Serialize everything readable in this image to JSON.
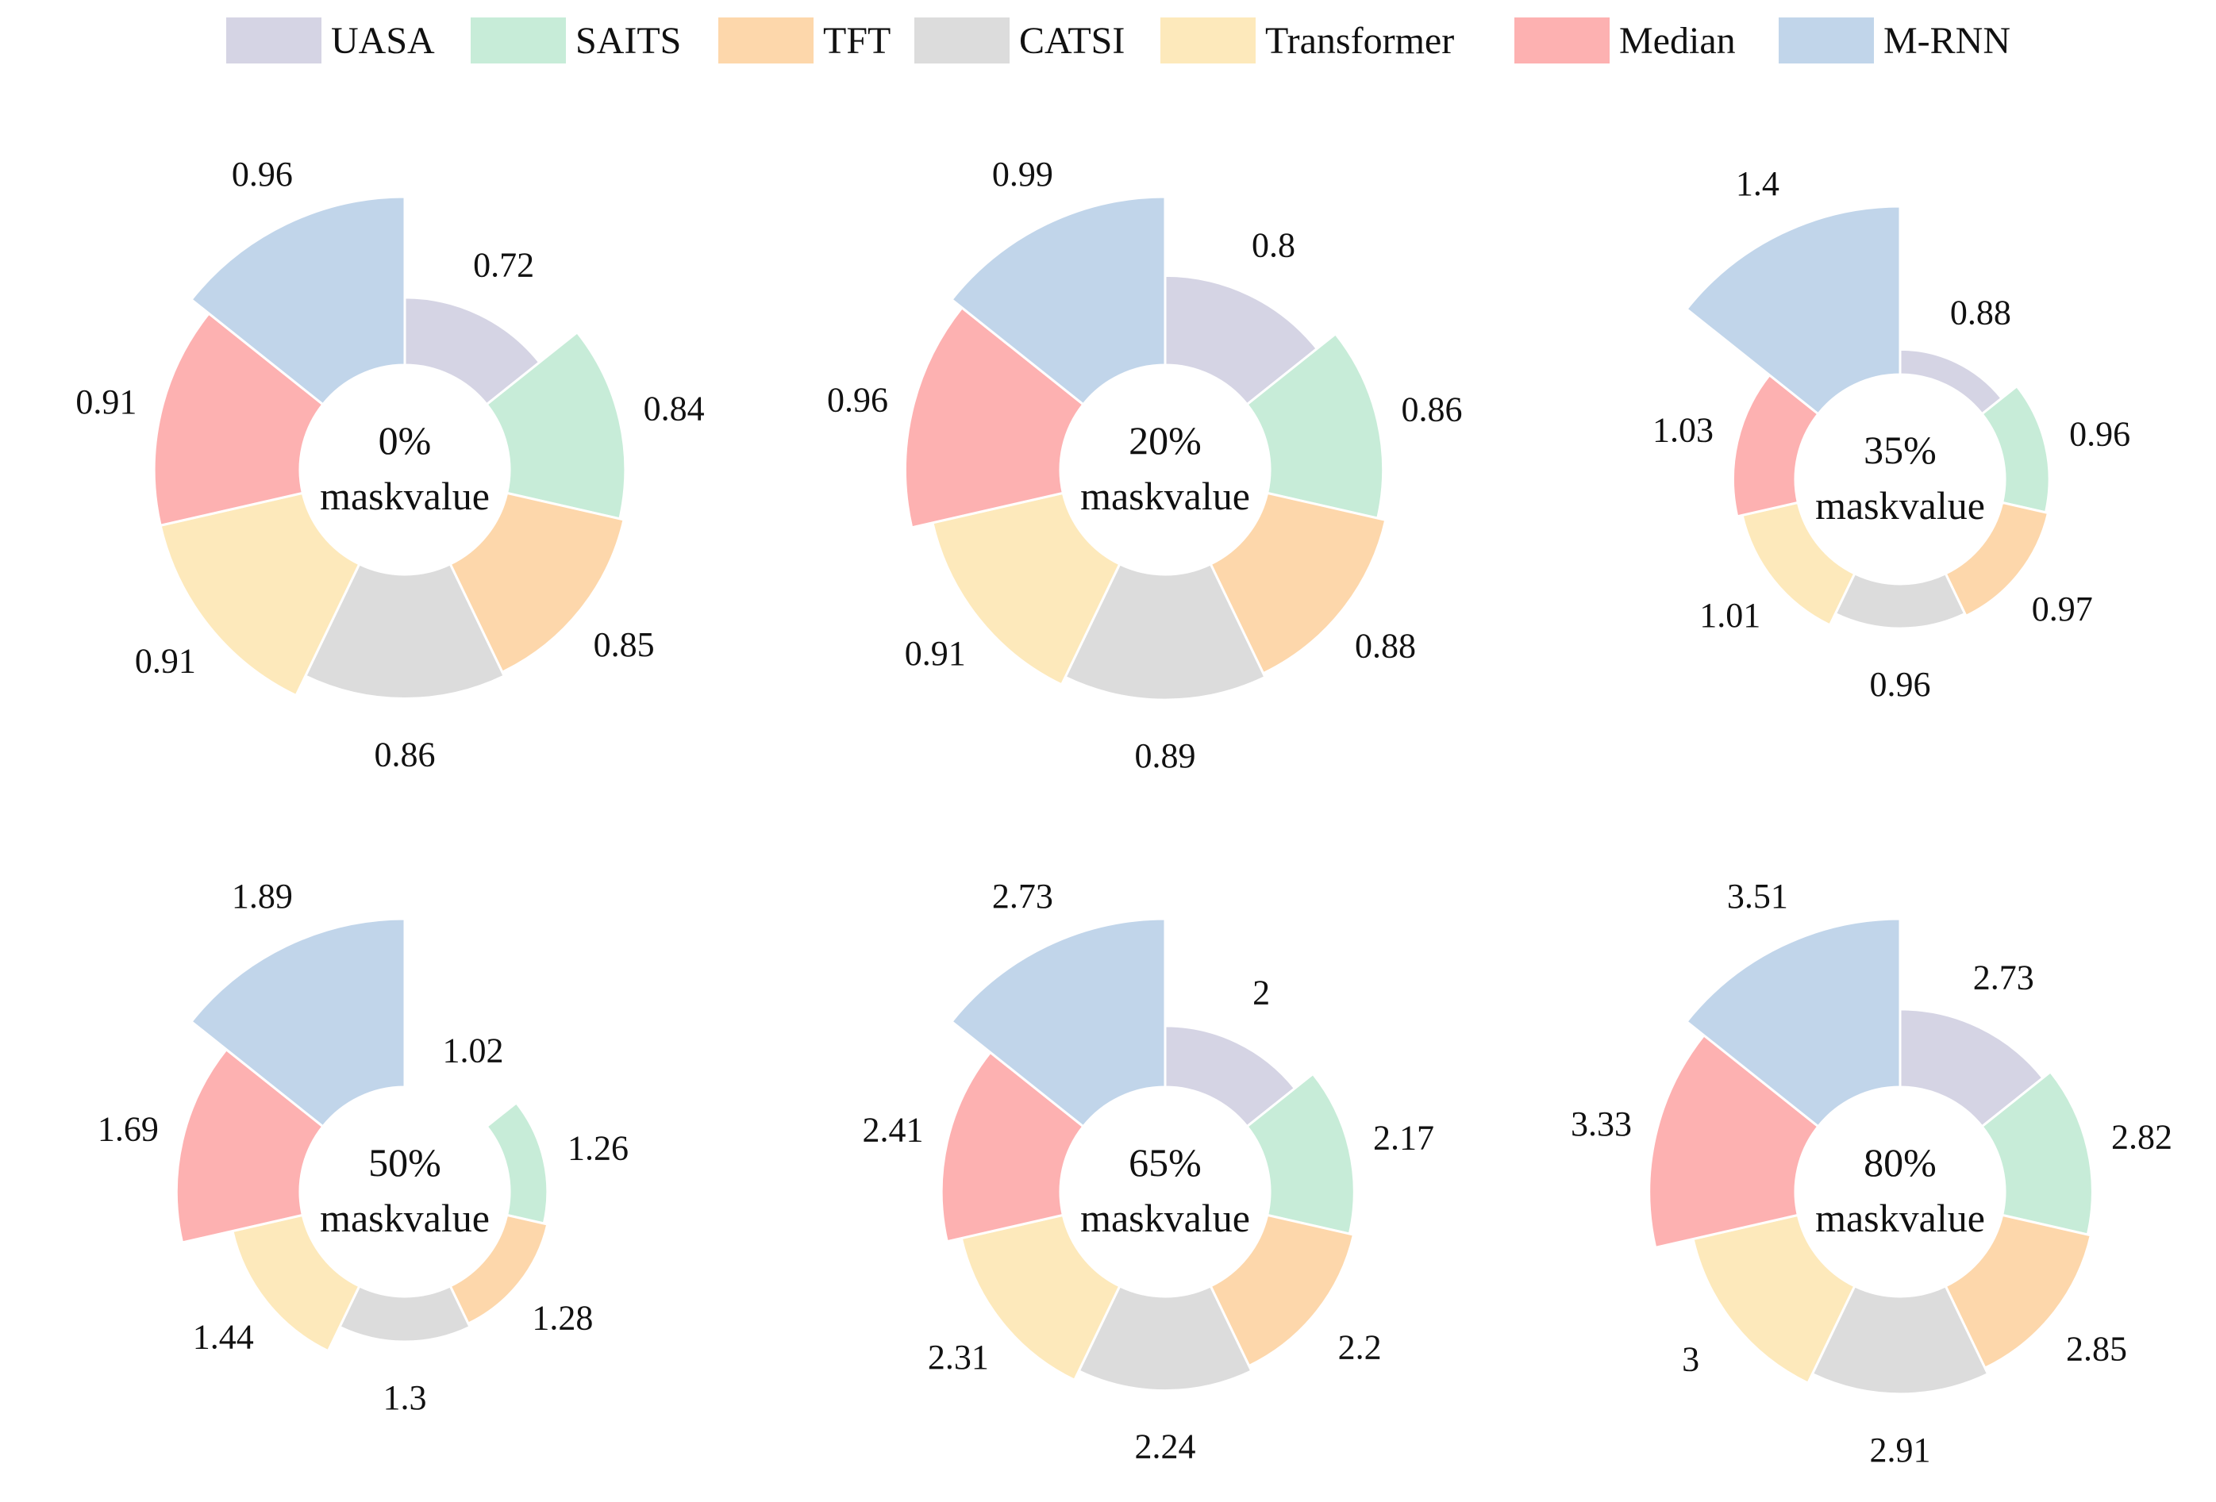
{
  "colors": {
    "UASA": "#d5d4e4",
    "SAITS": "#c7ecd8",
    "TFT": "#fdd7ab",
    "CATSI": "#dcdcdc",
    "Transformer": "#fde9bb",
    "Median": "#fdb1b1",
    "M-RNN": "#c1d5ea"
  },
  "legend": [
    "UASA",
    "SAITS",
    "TFT",
    "CATSI",
    "Transformer",
    "Median",
    "M-RNN"
  ],
  "chart_data": [
    {
      "type": "pie",
      "title": "0% maskvalue",
      "center_line1": "0%",
      "center_line2": "maskvalue",
      "categories": [
        "UASA",
        "SAITS",
        "TFT",
        "CATSI",
        "Transformer",
        "Median",
        "M-RNN"
      ],
      "values": [
        0.72,
        0.84,
        0.85,
        0.86,
        0.91,
        0.91,
        0.96
      ],
      "labels": [
        "0.72",
        "0.84",
        "0.85",
        "0.86",
        "0.91",
        "0.91",
        "0.96"
      ]
    },
    {
      "type": "pie",
      "title": "20% maskvalue",
      "center_line1": "20%",
      "center_line2": "maskvalue",
      "categories": [
        "UASA",
        "SAITS",
        "TFT",
        "CATSI",
        "Transformer",
        "Median",
        "M-RNN"
      ],
      "values": [
        0.8,
        0.86,
        0.88,
        0.89,
        0.91,
        0.96,
        0.99
      ],
      "labels": [
        "0.8",
        "0.86",
        "0.88",
        "0.89",
        "0.91",
        "0.96",
        "0.99"
      ]
    },
    {
      "type": "pie",
      "title": "35% maskvalue",
      "center_line1": "35%",
      "center_line2": "maskvalue",
      "categories": [
        "UASA",
        "SAITS",
        "TFT",
        "CATSI",
        "Transformer",
        "Median",
        "M-RNN"
      ],
      "values": [
        0.88,
        0.96,
        0.97,
        0.96,
        1.01,
        1.03,
        1.4
      ],
      "labels": [
        "0.88",
        "0.96",
        "0.97",
        "0.96",
        "1.01",
        "1.03",
        "1.4"
      ]
    },
    {
      "type": "pie",
      "title": "50% maskvalue",
      "center_line1": "50%",
      "center_line2": "maskvalue",
      "categories": [
        "UASA",
        "SAITS",
        "TFT",
        "CATSI",
        "Transformer",
        "Median",
        "M-RNN"
      ],
      "values": [
        1.02,
        1.26,
        1.28,
        1.3,
        1.44,
        1.69,
        1.89
      ],
      "labels": [
        "1.02",
        "1.26",
        "1.28",
        "1.3",
        "1.44",
        "1.69",
        "1.89"
      ]
    },
    {
      "type": "pie",
      "title": "65% maskvalue",
      "center_line1": "65%",
      "center_line2": "maskvalue",
      "categories": [
        "UASA",
        "SAITS",
        "TFT",
        "CATSI",
        "Transformer",
        "Median",
        "M-RNN"
      ],
      "values": [
        2,
        2.17,
        2.2,
        2.24,
        2.31,
        2.41,
        2.73
      ],
      "labels": [
        "2",
        "2.17",
        "2.2",
        "2.24",
        "2.31",
        "2.41",
        "2.73"
      ]
    },
    {
      "type": "pie",
      "title": "80% maskvalue",
      "center_line1": "80%",
      "center_line2": "maskvalue",
      "categories": [
        "UASA",
        "SAITS",
        "TFT",
        "CATSI",
        "Transformer",
        "Median",
        "M-RNN"
      ],
      "values": [
        2.73,
        2.82,
        2.85,
        2.91,
        3,
        3.33,
        3.51
      ],
      "labels": [
        "2.73",
        "2.82",
        "2.85",
        "2.91",
        "3",
        "3.33",
        "3.51"
      ]
    }
  ]
}
